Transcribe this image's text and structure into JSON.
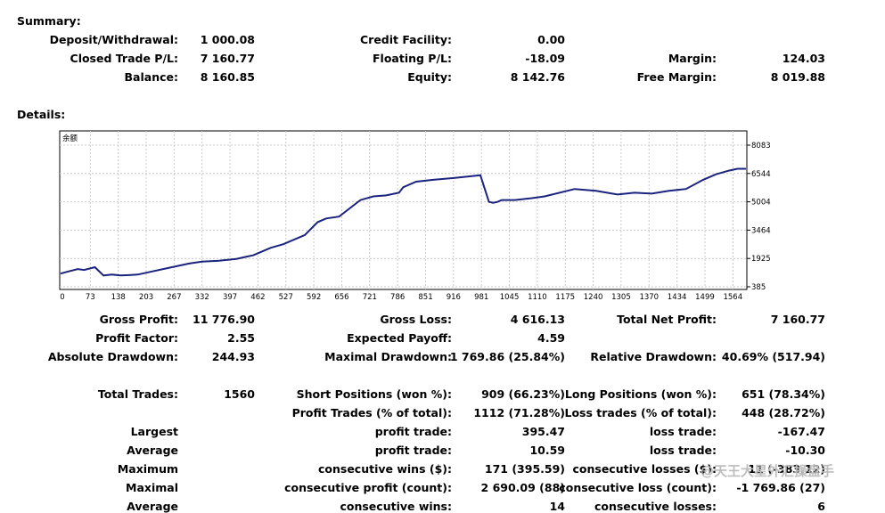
{
  "summary": {
    "title": "Summary:",
    "rows": [
      [
        {
          "label": "Deposit/Withdrawal:",
          "value": "1 000.08"
        },
        {
          "label": "Credit Facility:",
          "value": "0.00"
        },
        {
          "label": "",
          "value": ""
        }
      ],
      [
        {
          "label": "Closed Trade P/L:",
          "value": "7 160.77"
        },
        {
          "label": "Floating P/L:",
          "value": "-18.09"
        },
        {
          "label": "Margin:",
          "value": "124.03"
        }
      ],
      [
        {
          "label": "Balance:",
          "value": "8 160.85"
        },
        {
          "label": "Equity:",
          "value": "8 142.76"
        },
        {
          "label": "Free Margin:",
          "value": "8 019.88"
        }
      ]
    ]
  },
  "details": {
    "title": "Details:"
  },
  "chart_data": {
    "type": "line",
    "title": "余额",
    "xlabel": "",
    "ylabel": "",
    "x_ticks": [
      "0",
      "73",
      "138",
      "203",
      "267",
      "332",
      "397",
      "462",
      "527",
      "592",
      "656",
      "721",
      "786",
      "851",
      "916",
      "981",
      "1045",
      "1110",
      "1175",
      "1240",
      "1305",
      "1370",
      "1434",
      "1499",
      "1564"
    ],
    "y_ticks": [
      "8083",
      "6544",
      "5004",
      "3464",
      "1925",
      "385"
    ],
    "xlim": [
      0,
      1600
    ],
    "ylim": [
      385,
      8083
    ],
    "grid": true,
    "line_color": "#1a237e",
    "series": [
      {
        "x": [
          0,
          15,
          40,
          55,
          80,
          100,
          120,
          140,
          160,
          180,
          210,
          250,
          300,
          330,
          370,
          390,
          410,
          430,
          450,
          470,
          490,
          520,
          570,
          600,
          620,
          650,
          700,
          730,
          760,
          790,
          800,
          830,
          870,
          920,
          960,
          980,
          1000,
          1010,
          1020,
          1030,
          1060,
          1100,
          1130,
          1200,
          1250,
          1300,
          1340,
          1380,
          1420,
          1460,
          1500,
          1530,
          1560,
          1580,
          1600
        ],
        "y": [
          1100,
          1200,
          1350,
          1300,
          1450,
          1000,
          1050,
          1000,
          1020,
          1050,
          1200,
          1400,
          1650,
          1750,
          1800,
          1850,
          1900,
          2000,
          2100,
          2300,
          2500,
          2700,
          3200,
          3900,
          4100,
          4200,
          5100,
          5300,
          5350,
          5500,
          5800,
          6100,
          6200,
          6300,
          6400,
          6450,
          5000,
          4950,
          5000,
          5100,
          5100,
          5200,
          5300,
          5700,
          5600,
          5400,
          5500,
          5450,
          5600,
          5700,
          6200,
          6500,
          6700,
          6800,
          6800
        ]
      }
    ]
  },
  "stats": {
    "row1": [
      {
        "label": "Gross Profit:",
        "value": "11 776.90"
      },
      {
        "label": "Gross Loss:",
        "value": "4 616.13"
      },
      {
        "label": "Total Net Profit:",
        "value": "7 160.77"
      }
    ],
    "row2": [
      {
        "label": "Profit Factor:",
        "value": "2.55"
      },
      {
        "label": "Expected Payoff:",
        "value": "4.59"
      }
    ],
    "row3": [
      {
        "label": "Absolute Drawdown:",
        "value": "244.93"
      },
      {
        "label": "Maximal Drawdown:",
        "value": "1 769.86 (25.84%)"
      },
      {
        "label": "Relative Drawdown:",
        "value": "40.69% (517.94)"
      }
    ],
    "trades": [
      {
        "a_label": "Total Trades:",
        "a_value": "1560",
        "b_label": "Short Positions (won %):",
        "b_value": "909 (66.23%)",
        "c_label": "Long Positions (won %):",
        "c_value": "651 (78.34%)"
      },
      {
        "a_label": "",
        "a_value": "",
        "b_label": "Profit Trades (% of total):",
        "b_value": "1112 (71.28%)",
        "c_label": "Loss trades (% of total):",
        "c_value": "448 (28.72%)"
      },
      {
        "a_label": "Largest",
        "a_value": "",
        "b_label": "profit trade:",
        "b_value": "395.47",
        "c_label": "loss trade:",
        "c_value": "-167.47"
      },
      {
        "a_label": "Average",
        "a_value": "",
        "b_label": "profit trade:",
        "b_value": "10.59",
        "c_label": "loss trade:",
        "c_value": "-10.30"
      },
      {
        "a_label": "Maximum",
        "a_value": "",
        "b_label": "consecutive wins ($):",
        "b_value": "171 (395.59)",
        "c_label": "consecutive losses ($):",
        "c_value": "11 (-383.12)"
      },
      {
        "a_label": "Maximal",
        "a_value": "",
        "b_label": "consecutive profit (count):",
        "b_value": "2 690.09 (88)",
        "c_label": "consecutive loss (count):",
        "c_value": "-1 769.86 (27)"
      },
      {
        "a_label": "Average",
        "a_value": "",
        "b_label": "consecutive wins:",
        "b_value": "14",
        "c_label": "consecutive losses:",
        "c_value": "6"
      }
    ]
  },
  "watermark": {
    "text": "@天王大星外汇操盘手"
  }
}
